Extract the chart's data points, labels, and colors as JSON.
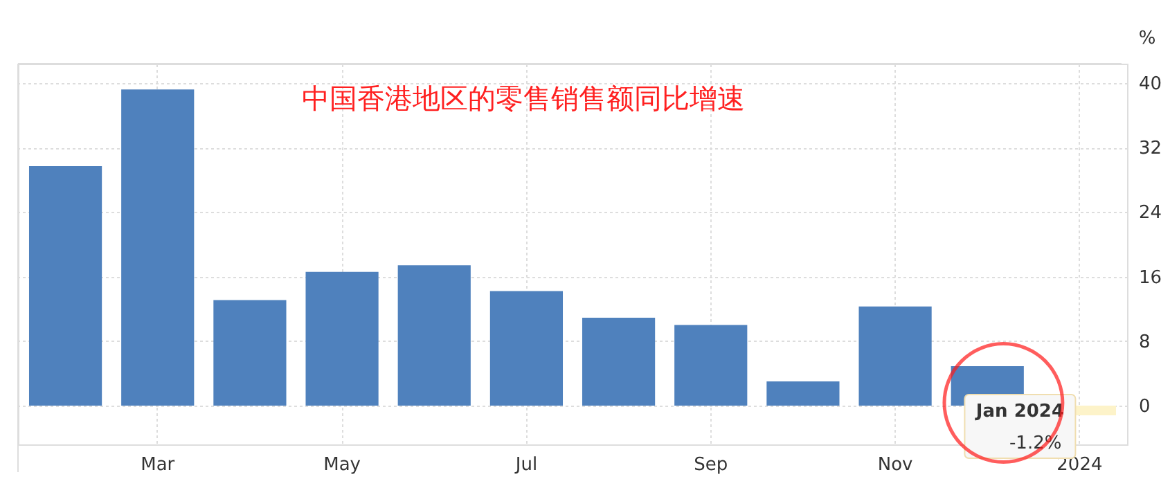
{
  "chart_data": {
    "type": "bar",
    "title": "中国香港地区的零售销售额同比增速",
    "categories": [
      null,
      "Mar",
      null,
      "May",
      null,
      "Jul",
      null,
      "Sep",
      null,
      "Nov",
      null,
      "2024"
    ],
    "values": [
      29.7,
      39.2,
      13.1,
      16.6,
      17.4,
      14.2,
      10.9,
      10.0,
      3.0,
      12.3,
      4.9,
      -1.2
    ],
    "colors": [
      "#4f81bd",
      "#4f81bd",
      "#4f81bd",
      "#4f81bd",
      "#4f81bd",
      "#4f81bd",
      "#4f81bd",
      "#4f81bd",
      "#4f81bd",
      "#4f81bd",
      "#4f81bd",
      "#fdf3c9"
    ],
    "ylabel": "%",
    "ylim": [
      -4.8,
      42.4
    ],
    "yticks": [
      0,
      8,
      16,
      24,
      32,
      40
    ],
    "annotations": [
      {
        "text": "Jan 2024",
        "x": "2024",
        "y": -1.2
      },
      {
        "text": "-1.2%",
        "x": "2024",
        "y": -1.2
      }
    ],
    "grid": true
  }
}
